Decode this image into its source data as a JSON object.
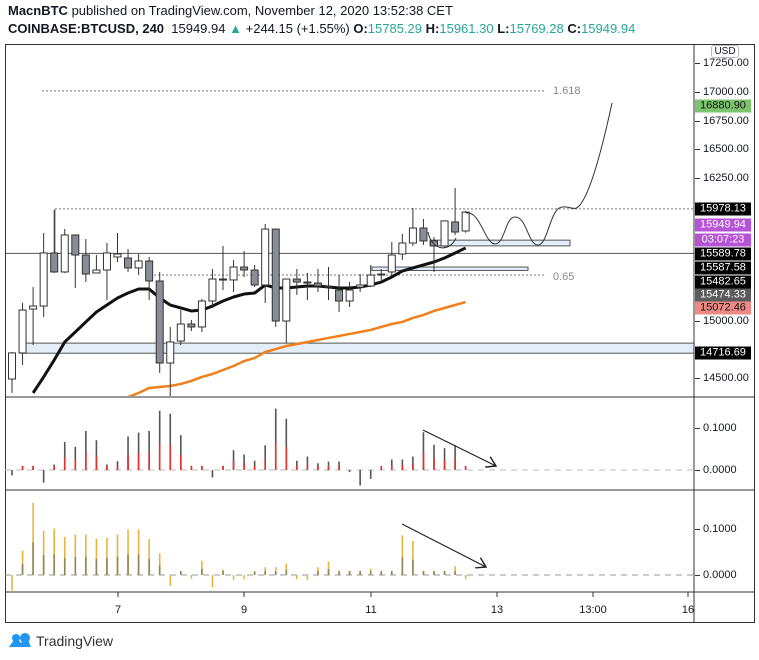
{
  "header": {
    "publisher": "MacnBTC",
    "published_text": "published on TradingView.com, November 12, 2020 13:52:38 CET",
    "symbol": "COINBASE:BTCUSD, 240",
    "last": "15949.94",
    "change": "+244.15 (+1.55%)",
    "o_label": "O:",
    "o": "15785.29",
    "h_label": "H:",
    "h": "15961.30",
    "l_label": "L:",
    "l": "15769.28",
    "c_label": "C:",
    "c": "15949.94"
  },
  "currency_button": "USD",
  "colors": {
    "up_text": "#26a69a",
    "candle_up": "#ffffff",
    "candle_down": "#8a8d96",
    "ema_fast": "#111111",
    "ema_slow": "#f0801c",
    "zone": "#e3eef9",
    "osc1_top": "#555555",
    "osc1_bottom": "#e8312f",
    "osc2_top": "#e9b43c",
    "osc2_bottom": "#8f8657",
    "tag_green": "#7cc46e",
    "tag_black": "#000000",
    "tag_purple": "#b653d6",
    "tag_gray": "#5b5b5b",
    "tag_red": "#ee8a86"
  },
  "price_tags": [
    {
      "label": "16880.90",
      "style": "green"
    },
    {
      "label": "15978.13",
      "style": "black"
    },
    {
      "label": "15949.94",
      "style": "purple"
    },
    {
      "label": "03:07:23",
      "style": "purple"
    },
    {
      "label": "15589.78",
      "style": "black"
    },
    {
      "label": "15587.58",
      "style": "black"
    },
    {
      "label": "15482.65",
      "style": "black"
    },
    {
      "label": "15474.33",
      "style": "gray"
    },
    {
      "label": "15072.46",
      "style": "red"
    },
    {
      "label": "14716.69",
      "style": "black"
    }
  ],
  "fib_labels": {
    "upper": "1.618",
    "lower": "0.65"
  },
  "osc_ticks": {
    "top": "0.1000",
    "zero": "0.0000"
  },
  "chart_data": [
    {
      "type": "candlestick",
      "interval": "240",
      "price_axis": {
        "ticks": [
          {
            "value": 17250,
            "label": "17250.00"
          },
          {
            "value": 17000,
            "label": "17000.00"
          },
          {
            "value": 16750,
            "label": "16750.00"
          },
          {
            "value": 16500,
            "label": "16500.00"
          },
          {
            "value": 16250,
            "label": "16250.00"
          },
          {
            "value": 15000,
            "label": "15000.00"
          },
          {
            "value": 14500,
            "label": "14500.00"
          }
        ]
      },
      "x_axis": {
        "ticks": [
          "7",
          "9",
          "11",
          "13",
          "13:00",
          "16"
        ]
      },
      "grid": false,
      "candles": [
        {
          "t": "Nov 5 08:00",
          "o": 14491,
          "h": 14727,
          "l": 14370,
          "c": 14719
        },
        {
          "t": "Nov 5 12:00",
          "o": 14719,
          "h": 15156,
          "l": 14614,
          "c": 15094
        },
        {
          "t": "Nov 5 16:00",
          "o": 15103,
          "h": 15295,
          "l": 14788,
          "c": 15129
        },
        {
          "t": "Nov 5 20:00",
          "o": 15129,
          "h": 15767,
          "l": 15033,
          "c": 15593
        },
        {
          "t": "Nov 6 00:00",
          "o": 15593,
          "h": 15969,
          "l": 15418,
          "c": 15427
        },
        {
          "t": "Nov 6 04:00",
          "o": 15427,
          "h": 15802,
          "l": 15418,
          "c": 15750
        },
        {
          "t": "Nov 6 08:00",
          "o": 15750,
          "h": 15750,
          "l": 15287,
          "c": 15575
        },
        {
          "t": "Nov 6 12:00",
          "o": 15575,
          "h": 15715,
          "l": 15339,
          "c": 15409
        },
        {
          "t": "Nov 6 16:00",
          "o": 15418,
          "h": 15575,
          "l": 15418,
          "c": 15444
        },
        {
          "t": "Nov 6 20:00",
          "o": 15444,
          "h": 15680,
          "l": 15182,
          "c": 15593
        },
        {
          "t": "Nov 7 00:00",
          "o": 15558,
          "h": 15767,
          "l": 15514,
          "c": 15584
        },
        {
          "t": "Nov 7 04:00",
          "o": 15549,
          "h": 15628,
          "l": 15427,
          "c": 15462
        },
        {
          "t": "Nov 7 08:00",
          "o": 15462,
          "h": 15584,
          "l": 15400,
          "c": 15523
        },
        {
          "t": "Nov 7 12:00",
          "o": 15523,
          "h": 15558,
          "l": 15182,
          "c": 15348
        },
        {
          "t": "Nov 7 16:00",
          "o": 15348,
          "h": 15427,
          "l": 14544,
          "c": 14631
        },
        {
          "t": "Nov 7 20:00",
          "o": 14631,
          "h": 14946,
          "l": 14325,
          "c": 14815
        },
        {
          "t": "Nov 8 00:00",
          "o": 14823,
          "h": 15094,
          "l": 14788,
          "c": 14972
        },
        {
          "t": "Nov 8 04:00",
          "o": 14972,
          "h": 15007,
          "l": 14911,
          "c": 14946
        },
        {
          "t": "Nov 8 08:00",
          "o": 14946,
          "h": 15191,
          "l": 14902,
          "c": 15173
        },
        {
          "t": "Nov 8 12:00",
          "o": 15173,
          "h": 15453,
          "l": 15112,
          "c": 15365
        },
        {
          "t": "Nov 8 16:00",
          "o": 15365,
          "h": 15654,
          "l": 15269,
          "c": 15357
        },
        {
          "t": "Nov 8 20:00",
          "o": 15357,
          "h": 15531,
          "l": 15252,
          "c": 15470
        },
        {
          "t": "Nov 9 00:00",
          "o": 15470,
          "h": 15610,
          "l": 15383,
          "c": 15444
        },
        {
          "t": "Nov 9 04:00",
          "o": 15444,
          "h": 15488,
          "l": 15295,
          "c": 15313
        },
        {
          "t": "Nov 9 08:00",
          "o": 15313,
          "h": 15846,
          "l": 15156,
          "c": 15802
        },
        {
          "t": "Nov 9 12:00",
          "o": 15802,
          "h": 15802,
          "l": 14946,
          "c": 14998
        },
        {
          "t": "Nov 9 16:00",
          "o": 14998,
          "h": 15365,
          "l": 14806,
          "c": 15365
        },
        {
          "t": "Nov 9 20:00",
          "o": 15365,
          "h": 15453,
          "l": 15226,
          "c": 15339
        },
        {
          "t": "Nov 10 00:00",
          "o": 15330,
          "h": 15418,
          "l": 15182,
          "c": 15339
        },
        {
          "t": "Nov 10 04:00",
          "o": 15330,
          "h": 15453,
          "l": 15252,
          "c": 15304
        },
        {
          "t": "Nov 10 08:00",
          "o": 15295,
          "h": 15470,
          "l": 15182,
          "c": 15304
        },
        {
          "t": "Nov 10 12:00",
          "o": 15269,
          "h": 15400,
          "l": 15077,
          "c": 15173
        },
        {
          "t": "Nov 10 16:00",
          "o": 15173,
          "h": 15339,
          "l": 15121,
          "c": 15269
        },
        {
          "t": "Nov 10 20:00",
          "o": 15295,
          "h": 15409,
          "l": 15252,
          "c": 15313
        },
        {
          "t": "Nov 11 00:00",
          "o": 15304,
          "h": 15488,
          "l": 15295,
          "c": 15400
        },
        {
          "t": "Nov 11 04:00",
          "o": 15400,
          "h": 15453,
          "l": 15357,
          "c": 15409
        },
        {
          "t": "Nov 11 08:00",
          "o": 15427,
          "h": 15689,
          "l": 15392,
          "c": 15575
        },
        {
          "t": "Nov 11 12:00",
          "o": 15584,
          "h": 15759,
          "l": 15531,
          "c": 15680
        },
        {
          "t": "Nov 11 16:00",
          "o": 15680,
          "h": 15986,
          "l": 15654,
          "c": 15811
        },
        {
          "t": "Nov 11 20:00",
          "o": 15811,
          "h": 15890,
          "l": 15663,
          "c": 15698
        },
        {
          "t": "Nov 12 00:00",
          "o": 15698,
          "h": 15733,
          "l": 15427,
          "c": 15654
        },
        {
          "t": "Nov 12 04:00",
          "o": 15654,
          "h": 15873,
          "l": 15637,
          "c": 15873
        },
        {
          "t": "Nov 12 08:00",
          "o": 15864,
          "h": 16161,
          "l": 15750,
          "c": 15776
        },
        {
          "t": "Nov 12 12:00",
          "o": 15785.29,
          "h": 15961.3,
          "l": 15769.28,
          "c": 15949.94
        }
      ],
      "ema_fast": [
        null,
        null,
        14369,
        14509,
        14657,
        14815,
        14902,
        14990,
        15077,
        15138,
        15199,
        15243,
        15278,
        15278,
        15199,
        15138,
        15112,
        15086,
        15094,
        15129,
        15173,
        15208,
        15234,
        15243,
        15313,
        15287,
        15287,
        15295,
        15304,
        15304,
        15295,
        15287,
        15287,
        15295,
        15313,
        15339,
        15383,
        15435,
        15462,
        15488,
        15514,
        15549,
        15593,
        15637
      ],
      "ma_slow": [
        null,
        null,
        null,
        null,
        null,
        null,
        null,
        null,
        null,
        null,
        null,
        14334,
        14369,
        14413,
        14421,
        14430,
        14448,
        14474,
        14509,
        14535,
        14570,
        14605,
        14648,
        14674,
        14727,
        14753,
        14780,
        14797,
        14815,
        14832,
        14850,
        14867,
        14885,
        14902,
        14920,
        14946,
        14972,
        14990,
        15025,
        15051,
        15086,
        15112,
        15138,
        15164
      ],
      "levels": [
        {
          "price": 17010,
          "style": "dotted",
          "label": "1.618"
        },
        {
          "price": 15978.13,
          "style": "dotted"
        },
        {
          "price": 15589.78,
          "style": "solid"
        },
        {
          "price": 15400,
          "style": "dotted",
          "label": "0.65"
        }
      ],
      "zones": [
        {
          "from": 14716.69,
          "to": 14805
        },
        {
          "from": 15655,
          "to": 15705
        },
        {
          "from": 15440,
          "to": 15470
        }
      ]
    },
    {
      "type": "bar",
      "pane": "oscillator-1",
      "y_ticks": [
        0.1,
        0.0
      ],
      "values": [
        -0.013,
        0.01,
        0.01,
        -0.03,
        0.013,
        0.067,
        0.055,
        0.093,
        0.071,
        0.013,
        0.021,
        0.08,
        0.089,
        0.093,
        0.141,
        0.134,
        0.083,
        0.01,
        0.01,
        -0.018,
        0.01,
        0.047,
        0.037,
        0.022,
        0.059,
        0.146,
        0.122,
        0.022,
        0.032,
        0.016,
        0.02,
        0.02,
        -0.005,
        -0.037,
        -0.021,
        0.01,
        0.025,
        0.025,
        0.032,
        0.09,
        0.06,
        0.052,
        0.059,
        0.01
      ]
    },
    {
      "type": "bar",
      "pane": "oscillator-2",
      "y_ticks": [
        0.1,
        0.0
      ],
      "values": [
        -0.034,
        0.053,
        0.157,
        0.096,
        0.101,
        0.083,
        0.088,
        0.088,
        0.079,
        0.081,
        0.088,
        0.099,
        0.099,
        0.078,
        0.047,
        -0.024,
        0.009,
        -0.008,
        0.031,
        -0.027,
        0.012,
        -0.011,
        -0.009,
        0.008,
        0.017,
        0.017,
        0.025,
        -0.009,
        -0.011,
        0.017,
        0.029,
        0.009,
        0.009,
        0.009,
        0.014,
        0.009,
        0.009,
        0.086,
        0.074,
        0.009,
        0.009,
        0.009,
        0.019,
        -0.009
      ]
    }
  ],
  "footer": {
    "brand": "TradingView"
  }
}
